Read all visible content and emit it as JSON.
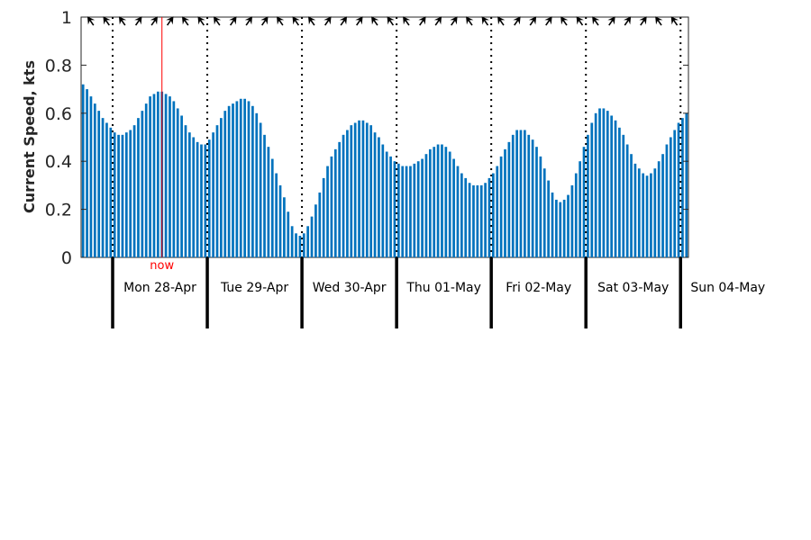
{
  "chart_data": {
    "type": "bar",
    "ylabel": "Current Speed, kts",
    "ylim": [
      0,
      1
    ],
    "y_ticks": [
      "0",
      "0.2",
      "0.4",
      "0.6",
      "0.8",
      "1"
    ],
    "grid": false,
    "bar_color": "#0072bd",
    "now_color": "#ff0000",
    "now_label": "now",
    "now_index": 20.5,
    "day_labels": [
      "Mon 28-Apr",
      "Tue 29-Apr",
      "Wed 30-Apr",
      "Thu 01-May",
      "Fri 02-May",
      "Sat 03-May",
      "Sun 04-May"
    ],
    "values": [
      0.72,
      0.7,
      0.67,
      0.64,
      0.61,
      0.58,
      0.56,
      0.54,
      0.52,
      0.51,
      0.51,
      0.52,
      0.53,
      0.55,
      0.58,
      0.61,
      0.64,
      0.67,
      0.68,
      0.69,
      0.69,
      0.68,
      0.67,
      0.65,
      0.62,
      0.59,
      0.55,
      0.52,
      0.5,
      0.48,
      0.47,
      0.47,
      0.49,
      0.52,
      0.55,
      0.58,
      0.61,
      0.63,
      0.64,
      0.65,
      0.66,
      0.66,
      0.65,
      0.63,
      0.6,
      0.56,
      0.51,
      0.46,
      0.41,
      0.35,
      0.3,
      0.25,
      0.19,
      0.13,
      0.1,
      0.09,
      0.1,
      0.13,
      0.17,
      0.22,
      0.27,
      0.33,
      0.38,
      0.42,
      0.45,
      0.48,
      0.51,
      0.53,
      0.55,
      0.56,
      0.57,
      0.57,
      0.56,
      0.55,
      0.52,
      0.5,
      0.47,
      0.44,
      0.42,
      0.4,
      0.39,
      0.38,
      0.38,
      0.38,
      0.39,
      0.4,
      0.41,
      0.43,
      0.45,
      0.46,
      0.47,
      0.47,
      0.46,
      0.44,
      0.41,
      0.38,
      0.35,
      0.33,
      0.31,
      0.3,
      0.3,
      0.3,
      0.31,
      0.33,
      0.35,
      0.38,
      0.42,
      0.45,
      0.48,
      0.51,
      0.53,
      0.53,
      0.53,
      0.51,
      0.49,
      0.46,
      0.42,
      0.37,
      0.32,
      0.27,
      0.24,
      0.23,
      0.24,
      0.26,
      0.3,
      0.35,
      0.4,
      0.46,
      0.51,
      0.56,
      0.6,
      0.62,
      0.62,
      0.61,
      0.59,
      0.57,
      0.54,
      0.51,
      0.47,
      0.43,
      0.39,
      0.37,
      0.35,
      0.34,
      0.35,
      0.37,
      0.4,
      0.43,
      0.47,
      0.5,
      0.53,
      0.56,
      0.58,
      0.6
    ]
  }
}
